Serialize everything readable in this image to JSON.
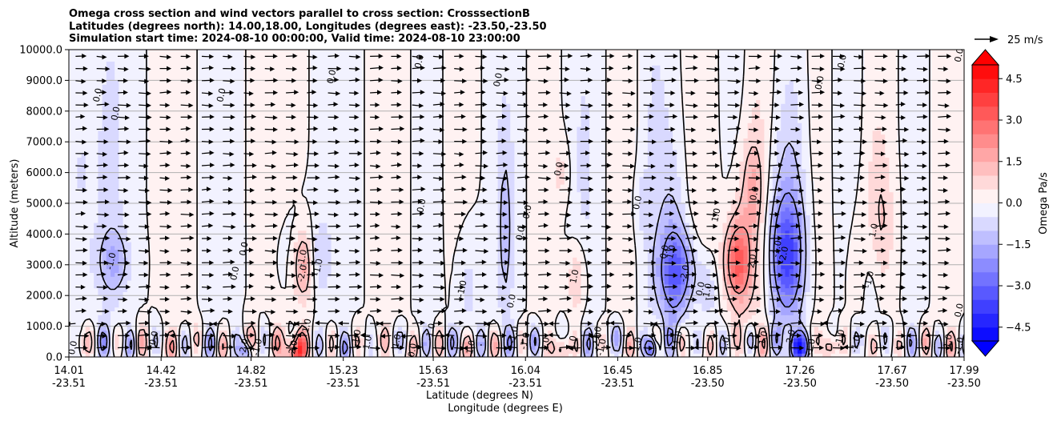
{
  "chart_data": {
    "type": "heatmap",
    "title_lines": [
      "Omega cross section and wind vectors parallel to cross section: CrosssectionB",
      "Latitudes (degrees north): 14.00,18.00, Longitudes (degrees east): -23.50,-23.50",
      "Simulation start time: 2024-08-10 00:00:00, Valid time: 2024-08-10 23:00:00"
    ],
    "ylabel": "Altitude (meters)",
    "xlabel_lat": "Latitude (degrees N)",
    "xlabel_lon": "Longitude (degrees E)",
    "ylim": [
      0,
      10000
    ],
    "y_ticks": [
      "0.0",
      "1000.0",
      "2000.0",
      "3000.0",
      "4000.0",
      "5000.0",
      "6000.0",
      "7000.0",
      "8000.0",
      "9000.0",
      "10000.0"
    ],
    "x_ticks": [
      {
        "lat": "14.01",
        "lon": "-23.51"
      },
      {
        "lat": "14.42",
        "lon": "-23.51"
      },
      {
        "lat": "14.82",
        "lon": "-23.51"
      },
      {
        "lat": "15.23",
        "lon": "-23.51"
      },
      {
        "lat": "15.63",
        "lon": "-23.51"
      },
      {
        "lat": "16.04",
        "lon": "-23.51"
      },
      {
        "lat": "16.45",
        "lon": "-23.51"
      },
      {
        "lat": "16.85",
        "lon": "-23.50"
      },
      {
        "lat": "17.26",
        "lon": "-23.50"
      },
      {
        "lat": "17.67",
        "lon": "-23.50"
      },
      {
        "lat": "17.99",
        "lon": "-23.50"
      }
    ],
    "xlim": [
      14.01,
      17.99
    ],
    "grid": "horizontal",
    "colorbar": {
      "label": "Omega Pa/s",
      "range": [
        -5,
        5
      ],
      "ticks": [
        "4.5",
        "3.0",
        "1.5",
        "0.0",
        "−1.5",
        "−3.0",
        "−4.5"
      ],
      "tick_values": [
        4.5,
        3.0,
        1.5,
        0.0,
        -1.5,
        -3.0,
        -4.5
      ],
      "extend": "both",
      "neg_color": "#0000ff",
      "pos_color": "#ff0000"
    },
    "quiver_key": "25 m/s",
    "contour_labels": [
      {
        "t": "0.0",
        "lat": 14.04,
        "z": 280
      },
      {
        "t": "0.0",
        "lat": 14.15,
        "z": 8500
      },
      {
        "t": "0.0",
        "lat": 14.23,
        "z": 7900
      },
      {
        "t": "-1.0",
        "lat": 14.21,
        "z": 3100
      },
      {
        "t": "0.0",
        "lat": 14.4,
        "z": 600
      },
      {
        "t": "0.0",
        "lat": 14.7,
        "z": 8500
      },
      {
        "t": "0.0",
        "lat": 14.8,
        "z": 3500
      },
      {
        "t": "0.0",
        "lat": 14.76,
        "z": 2700
      },
      {
        "t": "-2.0",
        "lat": 14.8,
        "z": 300
      },
      {
        "t": "-1.0",
        "lat": 14.86,
        "z": 300
      },
      {
        "t": "-1.0",
        "lat": 15.06,
        "z": 3200
      },
      {
        "t": "-2.0",
        "lat": 15.06,
        "z": 2700
      },
      {
        "t": "2.0",
        "lat": 15.02,
        "z": 300
      },
      {
        "t": "-1.0",
        "lat": 15.13,
        "z": 2900
      },
      {
        "t": "1.0",
        "lat": 15.08,
        "z": 1000
      },
      {
        "t": "-1.0",
        "lat": 15.3,
        "z": 600
      },
      {
        "t": "1.0",
        "lat": 15.35,
        "z": 450
      },
      {
        "t": "1.0",
        "lat": 15.48,
        "z": 500
      },
      {
        "t": "0.0",
        "lat": 15.19,
        "z": 9100
      },
      {
        "t": "0.0",
        "lat": 15.58,
        "z": 9600
      },
      {
        "t": "0.0",
        "lat": 15.59,
        "z": 4900
      },
      {
        "t": "0.0",
        "lat": 15.55,
        "z": 200
      },
      {
        "t": "-1.0",
        "lat": 15.63,
        "z": 800
      },
      {
        "t": "-1.0",
        "lat": 15.77,
        "z": 2200
      },
      {
        "t": "1.0",
        "lat": 15.81,
        "z": 300
      },
      {
        "t": "0.0",
        "lat": 15.93,
        "z": 9000
      },
      {
        "t": "0.0",
        "lat": 16.03,
        "z": 4000
      },
      {
        "t": "0.0",
        "lat": 15.99,
        "z": 1800
      },
      {
        "t": "0.0",
        "lat": 16.06,
        "z": 4700
      },
      {
        "t": "-1.0",
        "lat": 16.0,
        "z": 700
      },
      {
        "t": "-1.0",
        "lat": 16.05,
        "z": 500
      },
      {
        "t": "0.0",
        "lat": 16.2,
        "z": 6100
      },
      {
        "t": "1.0",
        "lat": 16.27,
        "z": 2600
      },
      {
        "t": "1.0",
        "lat": 16.14,
        "z": 400
      },
      {
        "t": "1.0",
        "lat": 16.26,
        "z": 450
      },
      {
        "t": "-1.0",
        "lat": 16.37,
        "z": 700
      },
      {
        "t": "-2.0",
        "lat": 16.37,
        "z": 500
      },
      {
        "t": "-1.0",
        "lat": 16.39,
        "z": 300
      },
      {
        "t": "0.0",
        "lat": 16.55,
        "z": 5000
      },
      {
        "t": "1.0",
        "lat": 16.55,
        "z": 400
      },
      {
        "t": "0.0",
        "lat": 16.67,
        "z": 3400
      },
      {
        "t": "1.0",
        "lat": 16.7,
        "z": 3400
      },
      {
        "t": "-2.0",
        "lat": 16.76,
        "z": 2700
      },
      {
        "t": "0.0",
        "lat": 16.83,
        "z": 2200
      },
      {
        "t": "1.0",
        "lat": 16.73,
        "z": 600
      },
      {
        "t": "-1.0",
        "lat": 16.86,
        "z": 2100
      },
      {
        "t": "1.0",
        "lat": 16.9,
        "z": 4600
      },
      {
        "t": "1.0",
        "lat": 16.94,
        "z": 400
      },
      {
        "t": "2.0",
        "lat": 17.06,
        "z": 3100
      },
      {
        "t": "0.0",
        "lat": 17.07,
        "z": 5300
      },
      {
        "t": "1.0",
        "lat": 17.11,
        "z": 600
      },
      {
        "t": "-1.0",
        "lat": 17.17,
        "z": 3500
      },
      {
        "t": "-2.0",
        "lat": 17.2,
        "z": 3300
      },
      {
        "t": "-2.0",
        "lat": 17.23,
        "z": 600
      },
      {
        "t": "-1.0",
        "lat": 17.32,
        "z": 300
      },
      {
        "t": "0.0",
        "lat": 17.36,
        "z": 8900
      },
      {
        "t": "0.0",
        "lat": 17.46,
        "z": 9600
      },
      {
        "t": "-1.0",
        "lat": 17.45,
        "z": 600
      },
      {
        "t": "-1.0",
        "lat": 17.52,
        "z": 400
      },
      {
        "t": "-1.0",
        "lat": 17.58,
        "z": 2500
      },
      {
        "t": "1.0",
        "lat": 17.6,
        "z": 4100
      },
      {
        "t": "0.0",
        "lat": 17.98,
        "z": 9800
      },
      {
        "t": "-1.0",
        "lat": 17.98,
        "z": 350
      },
      {
        "t": "0.0",
        "lat": 17.98,
        "z": 1500
      },
      {
        "t": "1.0",
        "lat": 17.93,
        "z": 500
      }
    ]
  }
}
